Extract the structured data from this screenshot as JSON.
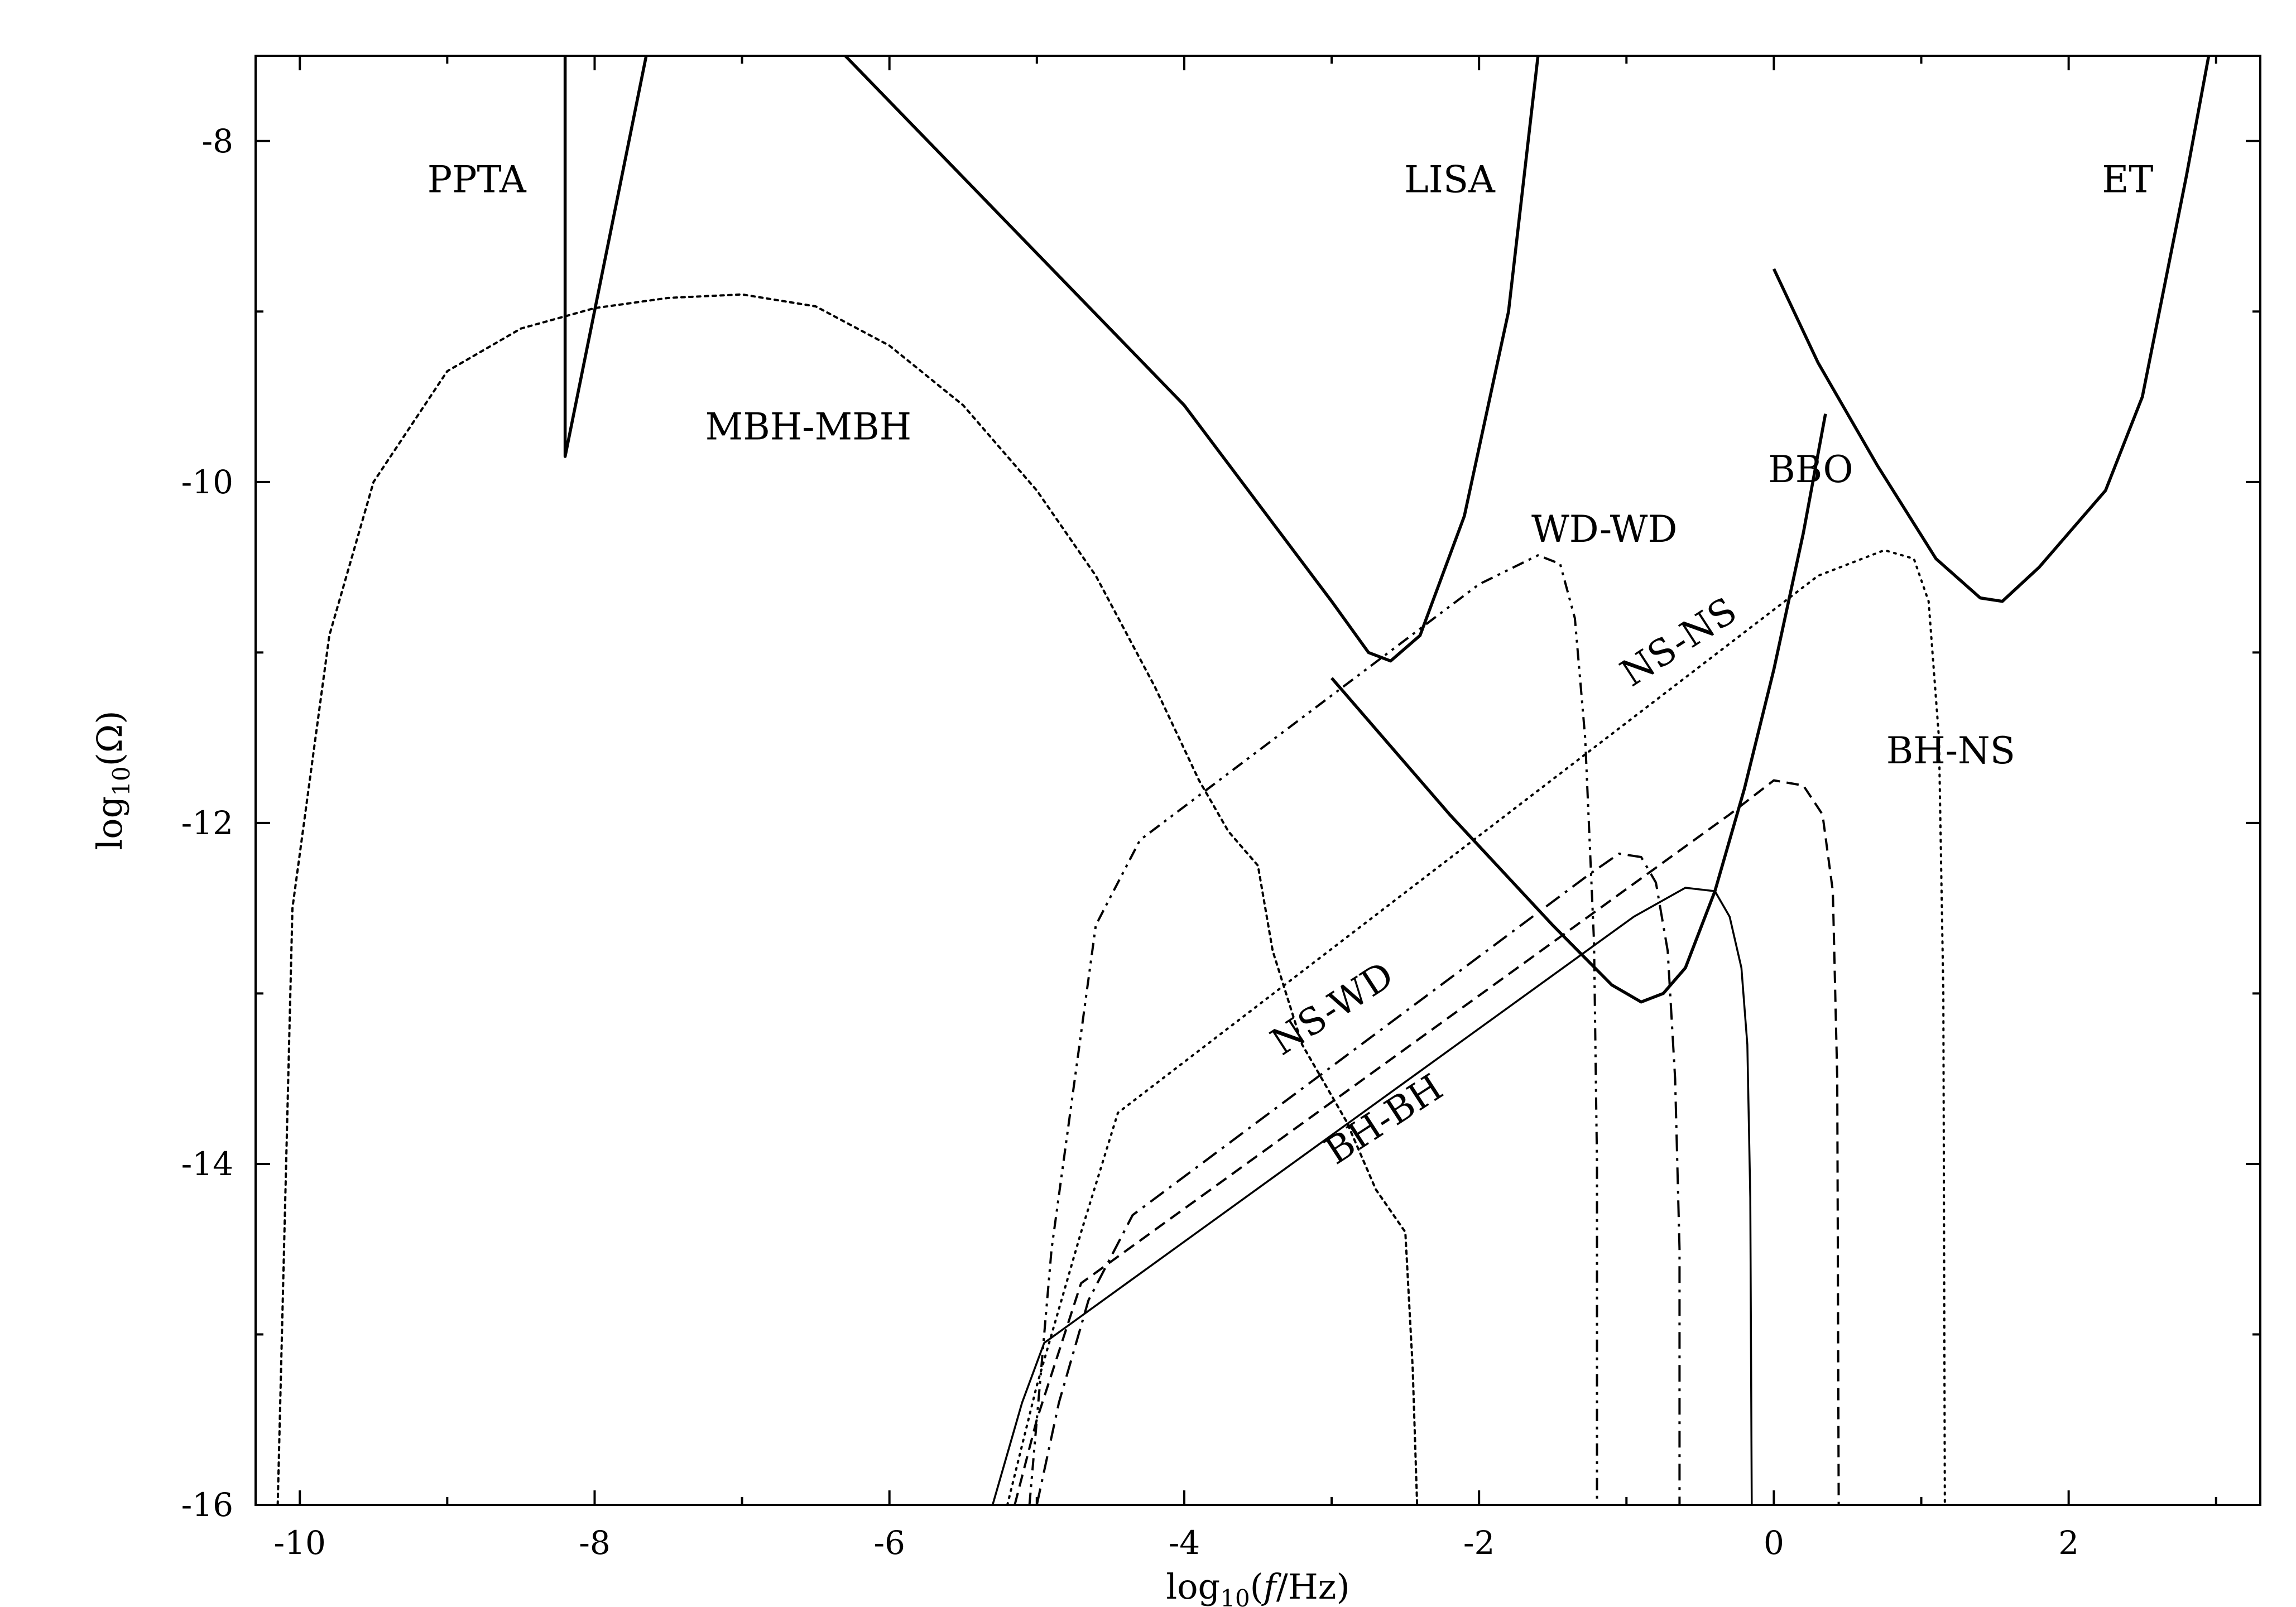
{
  "chart_data": {
    "type": "line",
    "xlabel": "log10(f/Hz)",
    "ylabel": "log10(Ω)",
    "xlim": [
      -10.3,
      3.3
    ],
    "ylim": [
      -16,
      -7.5
    ],
    "xticks": [
      -10,
      -8,
      -6,
      -4,
      -2,
      0,
      2
    ],
    "yticks": [
      -8,
      -10,
      -12,
      -14,
      -16
    ],
    "grid": false,
    "legend": "none",
    "series": [
      {
        "name": "PPTA",
        "style": "solid",
        "width": 5.5,
        "x": [
          -8.2,
          -8.2,
          -8.2,
          -7.65
        ],
        "y": [
          -7.5,
          -9.85,
          -9.85,
          -7.5
        ]
      },
      {
        "name": "LISA",
        "style": "solid",
        "width": 5.5,
        "x": [
          -6.3,
          -4.0,
          -3.0,
          -2.75,
          -2.6,
          -2.4,
          -2.1,
          -1.8,
          -1.6
        ],
        "y": [
          -7.5,
          -9.55,
          -10.7,
          -11.0,
          -11.05,
          -10.9,
          -10.2,
          -9.0,
          -7.5
        ]
      },
      {
        "name": "BBO",
        "style": "solid",
        "width": 5.5,
        "x": [
          -3.0,
          -2.2,
          -1.5,
          -1.1,
          -0.9,
          -0.75,
          -0.6,
          -0.4,
          -0.2,
          0.0,
          0.2,
          0.35
        ],
        "y": [
          -11.15,
          -11.95,
          -12.6,
          -12.95,
          -13.05,
          -13.0,
          -12.85,
          -12.4,
          -11.8,
          -11.1,
          -10.3,
          -9.6
        ]
      },
      {
        "name": "ET",
        "style": "solid",
        "width": 5.5,
        "x": [
          0.0,
          0.3,
          0.7,
          1.1,
          1.4,
          1.55,
          1.8,
          2.0,
          2.25,
          2.5,
          2.8,
          2.95
        ],
        "y": [
          -8.75,
          -9.3,
          -9.9,
          -10.45,
          -10.68,
          -10.7,
          -10.5,
          -10.3,
          -10.05,
          -9.5,
          -8.2,
          -7.5
        ]
      },
      {
        "name": "MBH-MBH",
        "style": "dotted-fine",
        "width": 4,
        "x": [
          -10.15,
          -10.05,
          -9.8,
          -9.5,
          -9.0,
          -8.5,
          -8.0,
          -7.5,
          -7.0,
          -6.5,
          -6.0,
          -5.5,
          -5.0,
          -4.6,
          -4.2,
          -3.9,
          -3.7,
          -3.5,
          -3.4,
          -3.2,
          -2.9,
          -2.7,
          -2.5,
          -2.45,
          -2.42
        ],
        "y": [
          -16.0,
          -12.5,
          -10.9,
          -10.0,
          -9.35,
          -9.1,
          -8.98,
          -8.92,
          -8.9,
          -8.97,
          -9.2,
          -9.55,
          -10.05,
          -10.55,
          -11.2,
          -11.75,
          -12.05,
          -12.25,
          -12.75,
          -13.3,
          -13.75,
          -14.15,
          -14.4,
          -15.2,
          -16.0
        ]
      },
      {
        "name": "WD-WD",
        "style": "dash-dot-dot",
        "width": 4,
        "x": [
          -5.05,
          -4.9,
          -4.6,
          -4.3,
          -2.0,
          -1.6,
          -1.45,
          -1.35,
          -1.28,
          -1.22,
          -1.2,
          -1.2
        ],
        "y": [
          -16.0,
          -14.5,
          -12.6,
          -12.1,
          -10.6,
          -10.43,
          -10.48,
          -10.8,
          -11.5,
          -12.7,
          -14.0,
          -16.0
        ]
      },
      {
        "name": "NS-NS",
        "style": "dotted",
        "width": 4,
        "x": [
          -5.2,
          -5.0,
          -4.7,
          -4.45,
          0.3,
          0.75,
          0.95,
          1.05,
          1.12,
          1.15,
          1.16
        ],
        "y": [
          -16.0,
          -15.3,
          -14.4,
          -13.7,
          -10.55,
          -10.4,
          -10.45,
          -10.7,
          -11.5,
          -13.0,
          -16.0
        ]
      },
      {
        "name": "BH-NS",
        "style": "dashed",
        "width": 4,
        "x": [
          -5.15,
          -5.0,
          -4.7,
          -0.3,
          0.0,
          0.2,
          0.33,
          0.4,
          0.43,
          0.44
        ],
        "y": [
          -16.0,
          -15.5,
          -14.7,
          -11.95,
          -11.75,
          -11.78,
          -11.95,
          -12.4,
          -13.5,
          -16.0
        ]
      },
      {
        "name": "NS-WD",
        "style": "dash-dot",
        "width": 4,
        "x": [
          -5.0,
          -4.85,
          -4.65,
          -4.35,
          -1.25,
          -1.05,
          -0.9,
          -0.8,
          -0.72,
          -0.67,
          -0.64,
          -0.64
        ],
        "y": [
          -16.0,
          -15.4,
          -14.8,
          -14.3,
          -12.3,
          -12.18,
          -12.2,
          -12.35,
          -12.75,
          -13.5,
          -14.5,
          -16.0
        ]
      },
      {
        "name": "BH-BH",
        "style": "solid-thin",
        "width": 3.5,
        "x": [
          -5.3,
          -5.1,
          -4.95,
          -0.95,
          -0.6,
          -0.4,
          -0.3,
          -0.22,
          -0.18,
          -0.16,
          -0.15
        ],
        "y": [
          -16.0,
          -15.4,
          -15.05,
          -12.55,
          -12.38,
          -12.4,
          -12.55,
          -12.85,
          -13.3,
          -14.2,
          -16.0
        ]
      }
    ],
    "annotations": [
      {
        "text": "PPTA",
        "x": -8.8,
        "y": -8.3,
        "rotate": 0
      },
      {
        "text": "LISA",
        "x": -2.2,
        "y": -8.3,
        "rotate": 0
      },
      {
        "text": "ET",
        "x": 2.4,
        "y": -8.3,
        "rotate": 0
      },
      {
        "text": "MBH-MBH",
        "x": -6.55,
        "y": -9.75,
        "rotate": 0
      },
      {
        "text": "BBO",
        "x": 0.25,
        "y": -10.0,
        "rotate": 0
      },
      {
        "text": "WD-WD",
        "x": -1.15,
        "y": -10.35,
        "rotate": 0
      },
      {
        "text": "NS-NS",
        "x": -0.6,
        "y": -11.0,
        "rotate": -33
      },
      {
        "text": "BH-NS",
        "x": 1.2,
        "y": -11.65,
        "rotate": 0
      },
      {
        "text": "NS-WD",
        "x": -2.95,
        "y": -13.15,
        "rotate": -33
      },
      {
        "text": "BH-BH",
        "x": -2.6,
        "y": -13.8,
        "rotate": -33
      }
    ]
  }
}
